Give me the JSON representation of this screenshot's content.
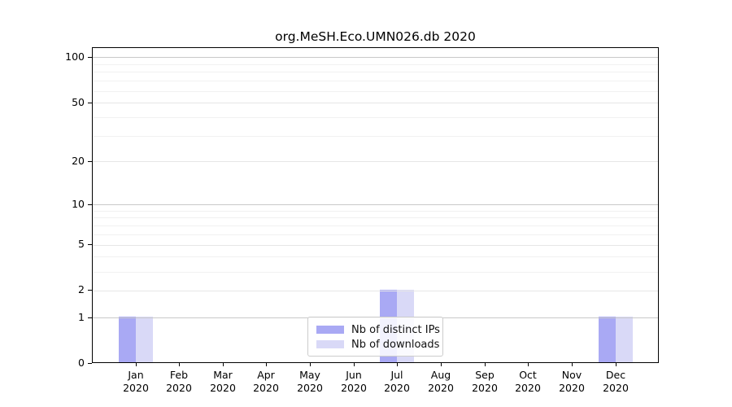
{
  "figure": {
    "background": "#ffffff"
  },
  "chart_data": {
    "type": "bar",
    "title": "org.MeSH.Eco.UMN026.db 2020",
    "xlabel": "",
    "ylabel": "",
    "x": {
      "months": [
        "Jan",
        "Feb",
        "Mar",
        "Apr",
        "May",
        "Jun",
        "Jul",
        "Aug",
        "Sep",
        "Oct",
        "Nov",
        "Dec"
      ],
      "year": "2020"
    },
    "series": [
      {
        "name": "Nb of distinct IPs",
        "color": "#a9a9f4",
        "values": [
          1,
          0,
          0,
          0,
          0,
          0,
          2,
          0,
          0,
          0,
          0,
          1
        ]
      },
      {
        "name": "Nb of downloads",
        "color": "#d9d9f7",
        "values": [
          1,
          0,
          0,
          0,
          0,
          0,
          2,
          0,
          0,
          0,
          0,
          1
        ]
      }
    ],
    "yaxis": {
      "scale": "log10(1+v)",
      "labeled_ticks": [
        0,
        1,
        2,
        5,
        10,
        20,
        50,
        100
      ],
      "major_ticks": [
        1,
        10,
        100
      ],
      "labeled_minor_ticks": [
        2,
        5,
        20,
        50
      ],
      "minor_ticks": [
        3,
        4,
        6,
        7,
        8,
        9,
        30,
        40,
        60,
        70,
        80,
        90
      ],
      "top_value": 116
    },
    "grid": {
      "enabled": true,
      "major_color": "#c9c9c9",
      "labeled_minor_color": "#e6e6e6",
      "minor_color": "#f1f1f1"
    },
    "legend": {
      "position": "lower center"
    }
  }
}
